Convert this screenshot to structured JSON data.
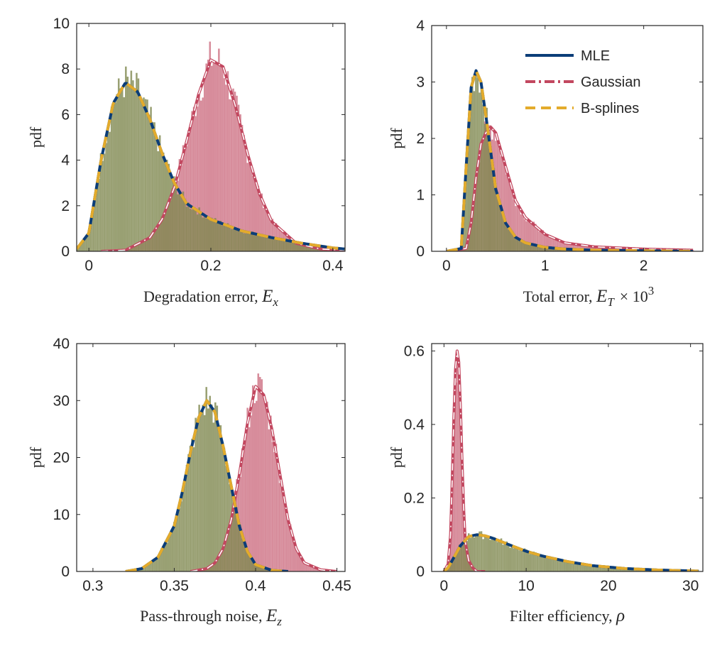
{
  "colors": {
    "mle": "#0b3d78",
    "gaussian": "#c2475f",
    "bsplines": "#e3ab2c",
    "mle_hist": "#7f8850",
    "gaussian_hist": "#d07889",
    "overlap": "#9b7a5f",
    "axis": "#262626"
  },
  "legend": {
    "placement": "top-right of top-right panel",
    "mle": "MLE",
    "gaussian": "Gaussian",
    "bsplines": "B-splines"
  },
  "panels": [
    {
      "ylabel": "pdf",
      "xlabel_text": "Degradation error,",
      "xlabel_symbol": "E",
      "xlabel_sub": "x",
      "xlabel_sup": "",
      "xlim": [
        -0.02,
        0.42
      ],
      "ylim": [
        0,
        10
      ],
      "xticks": [
        0,
        0.2,
        0.4
      ],
      "xtick_labels": [
        "0",
        "0.2",
        "0.4"
      ],
      "yticks": [
        0,
        2,
        4,
        6,
        8,
        10
      ],
      "ytick_labels": [
        "0",
        "2",
        "4",
        "6",
        "8",
        "10"
      ]
    },
    {
      "ylabel": "pdf",
      "xlabel_text": "Total error,",
      "xlabel_symbol": "E",
      "xlabel_sub": "T",
      "xlabel_sup": "× 10",
      "xlabel_exp": "3",
      "xlim": [
        -0.15,
        2.6
      ],
      "ylim": [
        0,
        4
      ],
      "xticks": [
        0,
        1,
        2
      ],
      "xtick_labels": [
        "0",
        "1",
        "2"
      ],
      "yticks": [
        0,
        1,
        2,
        3,
        4
      ],
      "ytick_labels": [
        "0",
        "1",
        "2",
        "3",
        "4"
      ]
    },
    {
      "ylabel": "pdf",
      "xlabel_text": "Pass-through noise,",
      "xlabel_symbol": "E",
      "xlabel_sub": "z",
      "xlabel_sup": "",
      "xlim": [
        0.29,
        0.455
      ],
      "ylim": [
        0,
        40
      ],
      "xticks": [
        0.3,
        0.35,
        0.4,
        0.45
      ],
      "xtick_labels": [
        "0.3",
        "0.35",
        "0.4",
        "0.45"
      ],
      "yticks": [
        0,
        10,
        20,
        30,
        40
      ],
      "ytick_labels": [
        "0",
        "10",
        "20",
        "30",
        "40"
      ]
    },
    {
      "ylabel": "pdf",
      "xlabel_text": "Filter efficiency,",
      "xlabel_symbol": "ρ",
      "xlabel_sub": "",
      "xlabel_sup": "",
      "xlim": [
        -1.5,
        31.5
      ],
      "ylim": [
        0,
        0.62
      ],
      "xticks": [
        0,
        10,
        20,
        30
      ],
      "xtick_labels": [
        "0",
        "10",
        "20",
        "30"
      ],
      "yticks": [
        0,
        0.2,
        0.4,
        0.6
      ],
      "ytick_labels": [
        "0",
        "0.2",
        "0.4",
        "0.6"
      ]
    }
  ],
  "chart_data": [
    {
      "type": "area",
      "xlabel": "Degradation error, E_x",
      "ylabel": "pdf",
      "xlim": [
        -0.02,
        0.42
      ],
      "ylim": [
        0,
        10
      ],
      "grid": false,
      "series": [
        {
          "name": "MLE",
          "x": [
            -0.02,
            0.0,
            0.02,
            0.04,
            0.06,
            0.08,
            0.1,
            0.12,
            0.14,
            0.16,
            0.2,
            0.25,
            0.3,
            0.35,
            0.4,
            0.42
          ],
          "y": [
            0.1,
            0.8,
            4.0,
            6.5,
            7.4,
            7.0,
            5.8,
            4.3,
            3.0,
            2.1,
            1.4,
            0.9,
            0.6,
            0.35,
            0.15,
            0.1
          ]
        },
        {
          "name": "Gaussian",
          "x": [
            0.02,
            0.06,
            0.1,
            0.12,
            0.14,
            0.16,
            0.18,
            0.2,
            0.22,
            0.24,
            0.26,
            0.28,
            0.3,
            0.34,
            0.38,
            0.42
          ],
          "y": [
            0.0,
            0.05,
            0.6,
            1.4,
            2.8,
            4.8,
            6.9,
            8.4,
            8.1,
            6.4,
            4.3,
            2.5,
            1.3,
            0.35,
            0.1,
            0.05
          ]
        },
        {
          "name": "B-splines",
          "x": [
            -0.02,
            0.0,
            0.02,
            0.04,
            0.06,
            0.08,
            0.1,
            0.12,
            0.14,
            0.16,
            0.2,
            0.25,
            0.3,
            0.35,
            0.4,
            0.42
          ],
          "y": [
            0.1,
            0.8,
            4.0,
            6.5,
            7.4,
            7.0,
            5.8,
            4.3,
            3.0,
            2.1,
            1.4,
            0.9,
            0.6,
            0.35,
            0.15,
            0.1
          ]
        }
      ]
    },
    {
      "type": "area",
      "xlabel": "Total error, E_T × 10^3",
      "ylabel": "pdf",
      "xlim": [
        -0.15,
        2.6
      ],
      "ylim": [
        0,
        4
      ],
      "grid": false,
      "series": [
        {
          "name": "MLE",
          "x": [
            0.0,
            0.15,
            0.2,
            0.25,
            0.3,
            0.35,
            0.4,
            0.5,
            0.6,
            0.7,
            0.8,
            1.0,
            1.2,
            1.5,
            2.0,
            2.5
          ],
          "y": [
            0.0,
            0.05,
            1.5,
            2.9,
            3.2,
            3.0,
            2.4,
            1.1,
            0.5,
            0.25,
            0.15,
            0.07,
            0.04,
            0.02,
            0.01,
            0.0
          ]
        },
        {
          "name": "Gaussian",
          "x": [
            0.0,
            0.2,
            0.25,
            0.3,
            0.35,
            0.4,
            0.45,
            0.5,
            0.6,
            0.7,
            0.8,
            1.0,
            1.2,
            1.5,
            2.0,
            2.5
          ],
          "y": [
            0.0,
            0.05,
            0.5,
            1.3,
            1.9,
            2.1,
            2.2,
            2.1,
            1.5,
            0.9,
            0.6,
            0.3,
            0.15,
            0.08,
            0.04,
            0.02
          ]
        },
        {
          "name": "B-splines",
          "x": [
            0.0,
            0.15,
            0.2,
            0.25,
            0.3,
            0.35,
            0.4,
            0.5,
            0.6,
            0.7,
            0.8,
            1.0,
            1.2,
            1.5,
            2.0,
            2.5
          ],
          "y": [
            0.0,
            0.05,
            1.5,
            2.9,
            3.2,
            3.0,
            2.4,
            1.1,
            0.5,
            0.25,
            0.15,
            0.07,
            0.04,
            0.02,
            0.01,
            0.0
          ]
        }
      ]
    },
    {
      "type": "area",
      "xlabel": "Pass-through noise, E_z",
      "ylabel": "pdf",
      "xlim": [
        0.29,
        0.455
      ],
      "ylim": [
        0,
        40
      ],
      "grid": false,
      "series": [
        {
          "name": "MLE",
          "x": [
            0.32,
            0.33,
            0.34,
            0.35,
            0.355,
            0.36,
            0.365,
            0.37,
            0.375,
            0.38,
            0.385,
            0.39,
            0.395,
            0.4,
            0.41,
            0.42
          ],
          "y": [
            0.0,
            0.5,
            2.5,
            8.0,
            14.0,
            21.0,
            27.0,
            30.0,
            28.0,
            22.0,
            15.0,
            8.0,
            3.5,
            1.2,
            0.2,
            0.0
          ]
        },
        {
          "name": "Gaussian",
          "x": [
            0.36,
            0.37,
            0.375,
            0.38,
            0.385,
            0.39,
            0.395,
            0.4,
            0.405,
            0.41,
            0.415,
            0.42,
            0.425,
            0.43,
            0.44,
            0.45
          ],
          "y": [
            0.0,
            0.5,
            1.5,
            4.0,
            9.0,
            17.0,
            26.0,
            32.5,
            31.0,
            25.0,
            17.0,
            9.0,
            4.0,
            1.5,
            0.3,
            0.0
          ]
        },
        {
          "name": "B-splines",
          "x": [
            0.32,
            0.33,
            0.34,
            0.35,
            0.355,
            0.36,
            0.365,
            0.37,
            0.375,
            0.38,
            0.385,
            0.39,
            0.395,
            0.4,
            0.41,
            0.42
          ],
          "y": [
            0.0,
            0.5,
            2.5,
            8.0,
            14.0,
            21.0,
            27.0,
            30.0,
            28.0,
            22.0,
            15.0,
            8.0,
            3.5,
            1.2,
            0.2,
            0.0
          ]
        }
      ]
    },
    {
      "type": "area",
      "xlabel": "Filter efficiency, ρ",
      "ylabel": "pdf",
      "xlim": [
        -1.5,
        31.5
      ],
      "ylim": [
        0,
        0.62
      ],
      "grid": false,
      "series": [
        {
          "name": "MLE",
          "x": [
            0.0,
            0.5,
            1.0,
            2.0,
            3.0,
            4.0,
            5.0,
            6.0,
            8.0,
            10.0,
            12.0,
            15.0,
            18.0,
            22.0,
            26.0,
            31.0
          ],
          "y": [
            0.0,
            0.01,
            0.03,
            0.07,
            0.095,
            0.1,
            0.097,
            0.09,
            0.072,
            0.055,
            0.042,
            0.027,
            0.016,
            0.008,
            0.004,
            0.001
          ]
        },
        {
          "name": "Gaussian",
          "x": [
            0.0,
            0.5,
            0.8,
            1.0,
            1.2,
            1.4,
            1.6,
            1.8,
            2.0,
            2.2,
            2.4,
            2.6,
            3.0,
            3.5,
            4.0,
            5.0
          ],
          "y": [
            0.0,
            0.02,
            0.1,
            0.25,
            0.42,
            0.55,
            0.6,
            0.57,
            0.45,
            0.3,
            0.17,
            0.08,
            0.03,
            0.01,
            0.0,
            0.0
          ]
        },
        {
          "name": "B-splines",
          "x": [
            0.0,
            0.5,
            1.0,
            2.0,
            3.0,
            4.0,
            5.0,
            6.0,
            8.0,
            10.0,
            12.0,
            15.0,
            18.0,
            22.0,
            26.0,
            31.0
          ],
          "y": [
            0.0,
            0.01,
            0.03,
            0.07,
            0.095,
            0.1,
            0.097,
            0.09,
            0.072,
            0.055,
            0.042,
            0.027,
            0.016,
            0.008,
            0.004,
            0.001
          ]
        }
      ]
    }
  ]
}
